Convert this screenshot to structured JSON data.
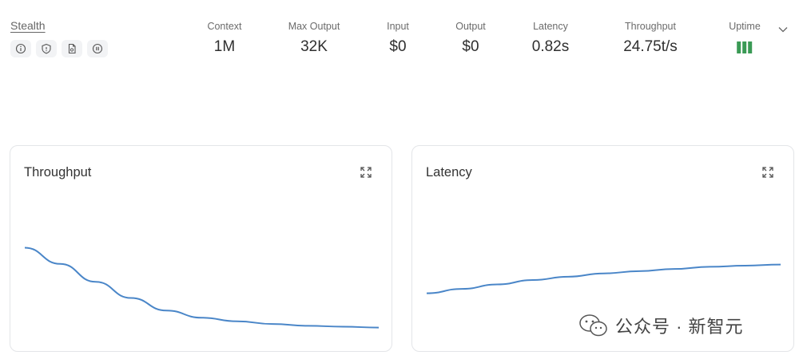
{
  "provider": {
    "name": "Stealth",
    "badges": [
      {
        "icon": "info-icon"
      },
      {
        "icon": "shield-icon"
      },
      {
        "icon": "document-icon"
      },
      {
        "icon": "pause-icon"
      }
    ]
  },
  "stats": [
    {
      "label": "Context",
      "value": "1M"
    },
    {
      "label": "Max Output",
      "value": "32K"
    },
    {
      "label": "Input",
      "value": "$0"
    },
    {
      "label": "Output",
      "value": "$0"
    },
    {
      "label": "Latency",
      "value": "0.82s"
    },
    {
      "label": "Throughput",
      "value": "24.75t/s"
    }
  ],
  "uptime": {
    "label": "Uptime",
    "bars": 3,
    "color": "#3a9a55"
  },
  "charts": {
    "throughput": {
      "title": "Throughput"
    },
    "latency": {
      "title": "Latency"
    }
  },
  "chart_data": [
    {
      "type": "line",
      "title": "Throughput",
      "x": [
        0,
        1,
        2,
        3,
        4,
        5,
        6,
        7,
        8,
        9,
        10
      ],
      "series": [
        {
          "values": [
            100,
            82,
            62,
            44,
            30,
            22,
            18,
            15,
            13,
            12,
            11
          ]
        }
      ],
      "ylim": [
        0,
        160
      ],
      "grid": false,
      "color": "#4a86c8"
    },
    {
      "type": "line",
      "title": "Latency",
      "x": [
        0,
        1,
        2,
        3,
        4,
        5,
        6,
        7,
        8,
        9,
        10
      ],
      "series": [
        {
          "values": [
            40,
            44,
            48,
            52,
            55,
            58,
            60,
            62,
            64,
            65,
            66
          ]
        }
      ],
      "ylim": [
        0,
        130
      ],
      "grid": false,
      "color": "#4a86c8"
    }
  ],
  "watermark": {
    "text": "公众号 · 新智元",
    "icon": "wechat-icon"
  }
}
